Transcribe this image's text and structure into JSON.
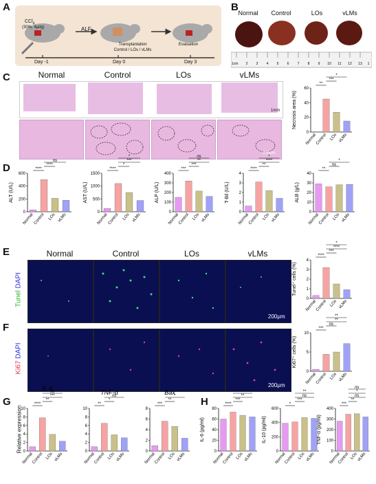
{
  "panels": {
    "A": "A",
    "B": "B",
    "C": "C",
    "D": "D",
    "E": "E",
    "F": "F",
    "G": "G",
    "H": "H"
  },
  "panelA": {
    "ccl4": "CCl",
    "ccl4_sub": "4",
    "ccl4_dose": "(30%, 4μl/g)",
    "alf": "ALF",
    "transplant1": "Transplantation",
    "transplant2": "Control / LOs / vLMs",
    "evaluation": "Evaluation",
    "days": [
      "Day -1",
      "Day 0",
      "Day 3"
    ]
  },
  "groups": [
    "Normal",
    "Control",
    "LOs",
    "vLMs"
  ],
  "panelB": {
    "ruler_unit": "1cm",
    "ruler_numbers": [
      "2",
      "3",
      "4",
      "5",
      "6",
      "7",
      "8",
      "9",
      "10",
      "11",
      "12",
      "13",
      "1"
    ]
  },
  "panelC": {
    "scale_top": "1mm",
    "scale_bottom": "200μm",
    "ylabel": "Necrosis area (%)"
  },
  "panelE": {
    "ylabel_a": "Tunel",
    "ylabel_b": "DAPI",
    "scale": "200μm",
    "chart_ylabel": "Tunel⁺ cells (%)"
  },
  "panelF": {
    "ylabel_a": "Ki67",
    "ylabel_b": "DAPI",
    "scale": "200μm",
    "chart_ylabel": "Ki67⁺ cells (%)"
  },
  "panelG": {
    "ylabel": "Relative expression"
  },
  "colors": {
    "normal": "#e79af2",
    "control": "#f7a3a3",
    "los": "#c9c08a",
    "vlms": "#9fa2f7",
    "bar_edge": "#555555"
  },
  "chart_data": [
    {
      "id": "C",
      "type": "bar",
      "ylabel": "Necrosis area (%)",
      "ylim": [
        0,
        60
      ],
      "yticks": [
        "0",
        "20",
        "40",
        "60"
      ],
      "categories": [
        "Normal",
        "Control",
        "LOs",
        "vLMs"
      ],
      "values": [
        0,
        45,
        27,
        15
      ],
      "sig": [
        "**",
        "***",
        "*"
      ]
    },
    {
      "id": "D1",
      "type": "bar",
      "ylabel": "ALT (U/L)",
      "ylim": [
        0,
        600
      ],
      "yticks": [
        "0",
        "200",
        "400",
        "600"
      ],
      "categories": [
        "Normal",
        "Control",
        "LOs",
        "vLMs"
      ],
      "values": [
        30,
        500,
        210,
        180
      ],
      "sig": [
        "****",
        "****",
        "ns"
      ]
    },
    {
      "id": "D2",
      "type": "bar",
      "ylabel": "AST (U/L)",
      "ylim": [
        0,
        1500
      ],
      "yticks": [
        "0",
        "500",
        "1000",
        "1500"
      ],
      "categories": [
        "Normal",
        "Control",
        "LOs",
        "vLMs"
      ],
      "values": [
        130,
        1100,
        750,
        440
      ],
      "sig": [
        "****",
        "*",
        "***",
        "*"
      ]
    },
    {
      "id": "D3",
      "type": "bar",
      "ylabel": "ALP (U/L)",
      "ylim": [
        0,
        400
      ],
      "yticks": [
        "0",
        "100",
        "200",
        "300",
        "400"
      ],
      "categories": [
        "Normal",
        "Control",
        "LOs",
        "vLMs"
      ],
      "values": [
        150,
        320,
        215,
        160
      ],
      "sig": [
        "***",
        "***",
        "**",
        "ns"
      ]
    },
    {
      "id": "D4",
      "type": "bar",
      "ylabel": "T-Bil (U/L)",
      "ylim": [
        0,
        4
      ],
      "yticks": [
        "0",
        "1",
        "2",
        "3",
        "4"
      ],
      "categories": [
        "Normal",
        "Control",
        "LOs",
        "vLMs"
      ],
      "values": [
        0.6,
        3.1,
        2.2,
        1.4
      ],
      "sig": [
        "****",
        "**",
        "****",
        "*"
      ]
    },
    {
      "id": "D5",
      "type": "bar",
      "ylabel": "ALB (g/L)",
      "ylim": [
        0,
        40
      ],
      "yticks": [
        "0",
        "10",
        "20",
        "30",
        "40"
      ],
      "categories": [
        "Normal",
        "Control",
        "LOs",
        "vLMs"
      ],
      "values": [
        29,
        26,
        28,
        28.5
      ],
      "sig": [
        "**",
        "ns",
        "*"
      ]
    },
    {
      "id": "E",
      "type": "bar",
      "ylabel": "Tunel⁺ cells (%)",
      "ylim": [
        0,
        4
      ],
      "yticks": [
        "0",
        "1",
        "2",
        "3",
        "4"
      ],
      "categories": [
        "Normal",
        "Control",
        "LOs",
        "vLMs"
      ],
      "values": [
        0.3,
        3.2,
        1.5,
        0.9
      ],
      "sig": [
        "****",
        "***",
        "****",
        "*"
      ]
    },
    {
      "id": "F",
      "type": "bar",
      "ylabel": "Ki67⁺ cells (%)",
      "ylim": [
        0,
        10
      ],
      "yticks": [
        "0",
        "5",
        "10"
      ],
      "categories": [
        "Normal",
        "Control",
        "LOs",
        "vLMs"
      ],
      "values": [
        0.5,
        4.4,
        5.0,
        7.2
      ],
      "sig": [
        "***",
        "ns",
        "**",
        "**"
      ]
    },
    {
      "id": "G1",
      "type": "bar",
      "title": "IL-6",
      "ylim": [
        0,
        10
      ],
      "yticks": [
        "0",
        "2",
        "4",
        "6",
        "8",
        "10"
      ],
      "categories": [
        "Normal",
        "Control",
        "LOs",
        "vLMs"
      ],
      "values": [
        1,
        7.8,
        3.9,
        2.3
      ],
      "sig": [
        "****",
        "**",
        "***",
        "ns"
      ]
    },
    {
      "id": "G2",
      "type": "bar",
      "title": "TNF-α",
      "ylim": [
        0,
        10
      ],
      "yticks": [
        "0",
        "2",
        "4",
        "6",
        "8",
        "10"
      ],
      "categories": [
        "Normal",
        "Control",
        "LOs",
        "vLMs"
      ],
      "values": [
        1,
        6.5,
        3.8,
        3.1
      ],
      "sig": [
        "**",
        "*",
        "ns"
      ]
    },
    {
      "id": "G3",
      "type": "bar",
      "title": "Bax",
      "ylim": [
        0,
        8
      ],
      "yticks": [
        "0",
        "2",
        "4",
        "6",
        "8"
      ],
      "categories": [
        "Normal",
        "Control",
        "LOs",
        "vLMs"
      ],
      "values": [
        1,
        5.6,
        4.6,
        2.4
      ],
      "sig": [
        "***",
        "**",
        "*"
      ]
    },
    {
      "id": "H1",
      "type": "bar",
      "ylabel": "IL-6 (pg/ml)",
      "ylim": [
        0,
        80
      ],
      "yticks": [
        "0",
        "20",
        "40",
        "60",
        "80"
      ],
      "categories": [
        "Normal",
        "Control",
        "LOs",
        "vLMs"
      ],
      "values": [
        60,
        73,
        67,
        64
      ],
      "sig": [
        "****",
        "***",
        "**",
        "*"
      ]
    },
    {
      "id": "H2",
      "type": "bar",
      "ylabel": "IL-10 (pg/ml)",
      "ylim": [
        0,
        600
      ],
      "yticks": [
        "0",
        "200",
        "400",
        "600"
      ],
      "categories": [
        "Normal",
        "Control",
        "LOs",
        "vLMs"
      ],
      "values": [
        390,
        410,
        470,
        460
      ],
      "sig": [
        "*",
        "***",
        "ns",
        "**"
      ]
    },
    {
      "id": "H3",
      "type": "bar",
      "ylabel": "TNF-α (pg/ml)",
      "ylim": [
        0,
        400
      ],
      "yticks": [
        "0",
        "100",
        "200",
        "300",
        "400"
      ],
      "categories": [
        "Normal",
        "Control",
        "LOs",
        "vLMs"
      ],
      "values": [
        280,
        345,
        350,
        320
      ],
      "sig": [
        "***",
        "**",
        "ns",
        "*",
        "ns"
      ]
    }
  ]
}
